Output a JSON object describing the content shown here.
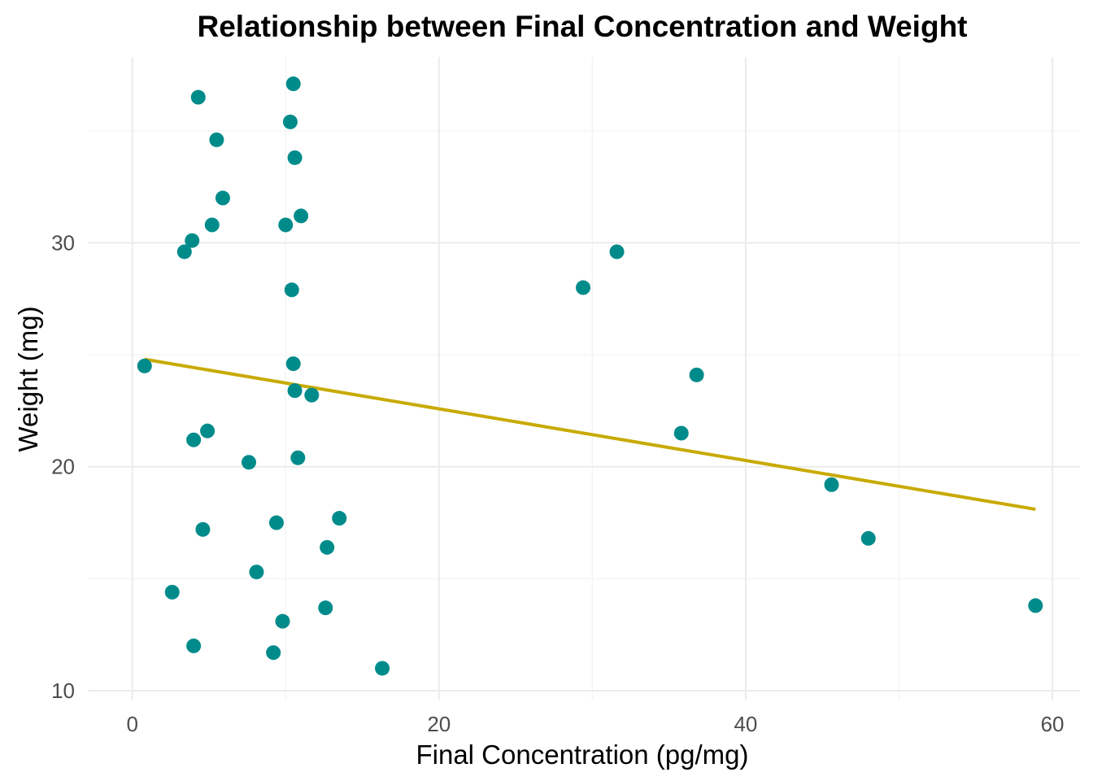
{
  "chart_data": {
    "type": "scatter",
    "title": "Relationship between Final Concentration and Weight",
    "xlabel": "Final Concentration (pg/mg)",
    "ylabel": "Weight (mg)",
    "xlim": [
      -2.9,
      61.8
    ],
    "ylim": [
      9.6,
      38.3
    ],
    "x_ticks": [
      0,
      20,
      40,
      60
    ],
    "y_ticks": [
      10,
      20,
      30
    ],
    "x_tick_labels": [
      "0",
      "20",
      "40",
      "60"
    ],
    "y_tick_labels": [
      "10",
      "20",
      "30"
    ],
    "x_minor": [
      10,
      30,
      50
    ],
    "y_minor": [
      15,
      25,
      35
    ],
    "grid": true,
    "legend": "none",
    "point_color": "#008b8b",
    "line_color": "#c8aa00",
    "points": [
      [
        0.8,
        24.5
      ],
      [
        2.6,
        14.4
      ],
      [
        3.4,
        29.6
      ],
      [
        3.9,
        30.1
      ],
      [
        4.0,
        21.2
      ],
      [
        4.0,
        12.0
      ],
      [
        4.3,
        36.5
      ],
      [
        4.6,
        17.2
      ],
      [
        4.9,
        21.6
      ],
      [
        5.2,
        30.8
      ],
      [
        5.5,
        34.6
      ],
      [
        5.9,
        32.0
      ],
      [
        7.6,
        20.2
      ],
      [
        8.1,
        15.3
      ],
      [
        9.2,
        11.7
      ],
      [
        9.4,
        17.5
      ],
      [
        9.8,
        13.1
      ],
      [
        10.0,
        30.8
      ],
      [
        10.3,
        35.4
      ],
      [
        10.4,
        27.9
      ],
      [
        10.5,
        24.6
      ],
      [
        10.5,
        37.1
      ],
      [
        10.6,
        33.8
      ],
      [
        10.6,
        23.4
      ],
      [
        10.8,
        20.4
      ],
      [
        11.0,
        31.2
      ],
      [
        11.7,
        23.2
      ],
      [
        12.6,
        13.7
      ],
      [
        12.7,
        16.4
      ],
      [
        13.5,
        17.7
      ],
      [
        16.3,
        11.0
      ],
      [
        29.4,
        28.0
      ],
      [
        31.6,
        29.6
      ],
      [
        35.8,
        21.5
      ],
      [
        36.8,
        24.1
      ],
      [
        45.6,
        19.2
      ],
      [
        48.0,
        16.8
      ],
      [
        58.9,
        13.8
      ]
    ],
    "trend_line": {
      "x": [
        0.8,
        58.9
      ],
      "y": [
        24.8,
        18.1
      ]
    }
  }
}
